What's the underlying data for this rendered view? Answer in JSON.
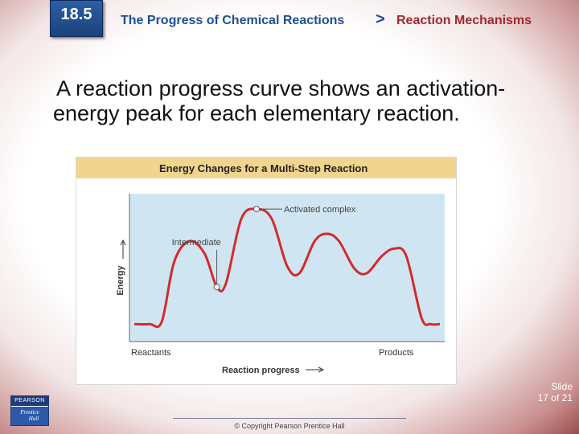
{
  "header": {
    "section_number": "18.5",
    "chapter_title": "The Progress of Chemical Reactions",
    "separator": ">",
    "lesson_title": "Reaction Mechanisms"
  },
  "intro_text": {
    "line1": "A reaction progress curve shows an activation-",
    "line2": "energy peak for each elementary reaction."
  },
  "figure": {
    "title": "Energy Changes for a Multi-Step Reaction",
    "y_axis_label": "Energy",
    "x_axis_label": "Reaction progress",
    "x_start_label": "Reactants",
    "x_end_label": "Products",
    "annotations": {
      "activated_complex": "Activated complex",
      "intermediate": "Intermediate"
    },
    "colors": {
      "plot_background": "#cfe6f2",
      "curve": "#d42a2a",
      "title_bar": "#f1d58f"
    }
  },
  "chart_data": {
    "type": "line",
    "title": "Energy Changes for a Multi-Step Reaction",
    "xlabel": "Reaction progress",
    "ylabel": "Energy",
    "x_tick_labels": [
      "Reactants",
      "Products"
    ],
    "series": [
      {
        "values": [
          0.05,
          0.05,
          0.07,
          0.55,
          0.72,
          0.62,
          0.35,
          0.38,
          0.9,
          0.98,
          0.9,
          0.52,
          0.46,
          0.72,
          0.78,
          0.72,
          0.5,
          0.46,
          0.6,
          0.66,
          0.6,
          0.1,
          0.05,
          0.05
        ]
      }
    ],
    "x": [
      0,
      0.05,
      0.09,
      0.13,
      0.18,
      0.23,
      0.27,
      0.3,
      0.35,
      0.4,
      0.45,
      0.5,
      0.54,
      0.59,
      0.63,
      0.67,
      0.72,
      0.76,
      0.81,
      0.85,
      0.89,
      0.94,
      0.97,
      1.0
    ],
    "annotations": [
      "Activated complex",
      "Intermediate"
    ],
    "grid": false
  },
  "footer": {
    "copyright": "© Copyright Pearson Prentice Hall",
    "slide_label": "Slide",
    "slide_counter": "17 of 21",
    "logo_top": "PEARSON",
    "logo_bottom_1": "Prentice",
    "logo_bottom_2": "Hall"
  }
}
